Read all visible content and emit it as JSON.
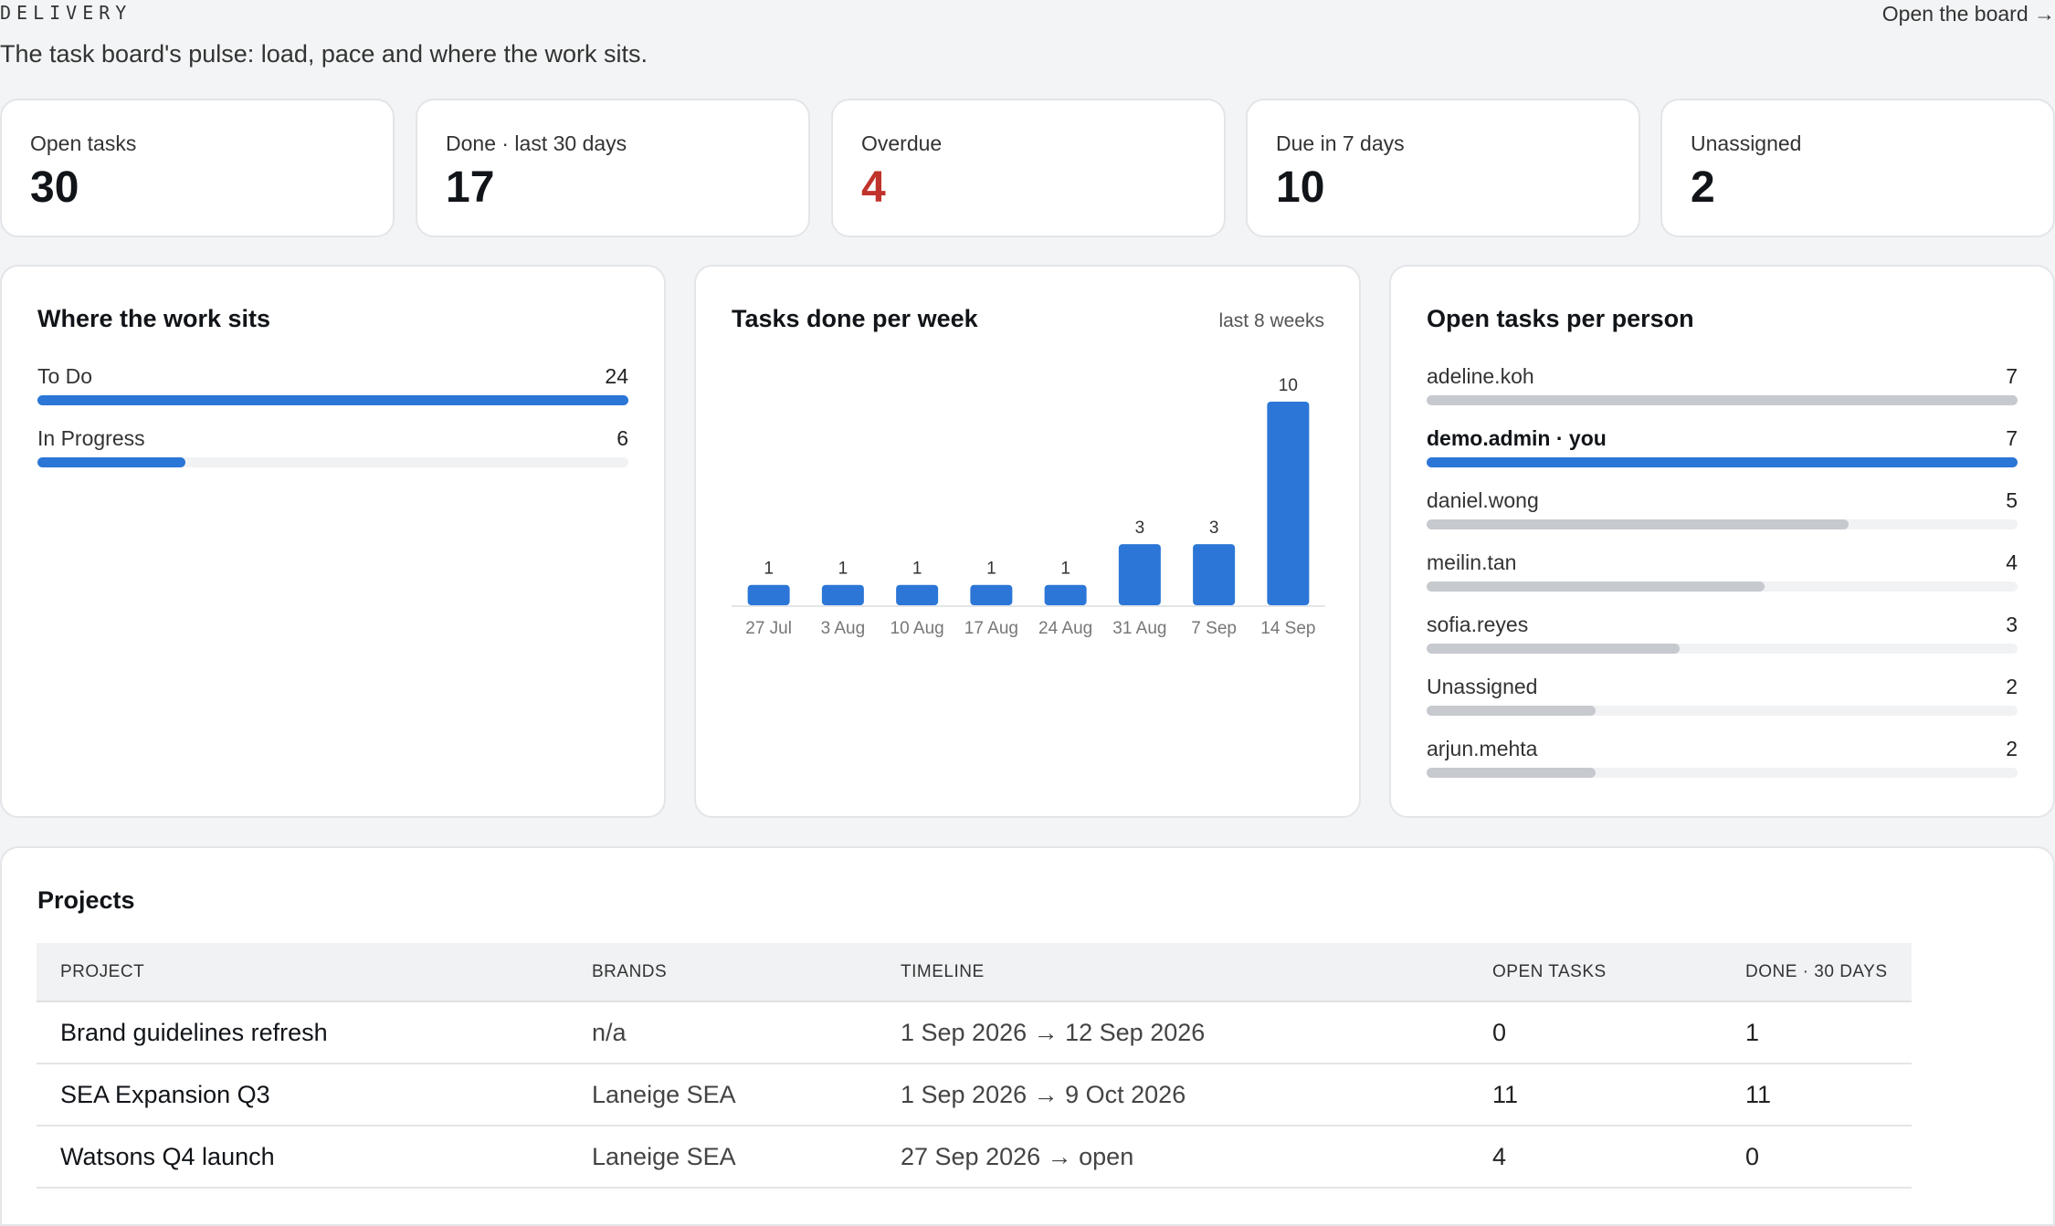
{
  "header": {
    "eyebrow": "DELIVERY",
    "subtitle": "The task board's pulse: load, pace and where the work sits.",
    "open_board_link": "Open the board →"
  },
  "stats": [
    {
      "label": "Open tasks",
      "value": "30"
    },
    {
      "label": "Done · last 30 days",
      "value": "17"
    },
    {
      "label": "Overdue",
      "value": "4"
    },
    {
      "label": "Due in 7 days",
      "value": "10"
    },
    {
      "label": "Unassigned",
      "value": "2"
    }
  ],
  "work_sits": {
    "title": "Where the work sits",
    "rows": [
      {
        "label": "To Do",
        "value": 24
      },
      {
        "label": "In Progress",
        "value": 6
      }
    ]
  },
  "done_per_week": {
    "title": "Tasks done per week",
    "note": "last 8 weeks"
  },
  "chart_data": {
    "type": "bar",
    "title": "Tasks done per week",
    "subtitle": "last 8 weeks",
    "categories": [
      "27 Jul",
      "3 Aug",
      "10 Aug",
      "17 Aug",
      "24 Aug",
      "31 Aug",
      "7 Sep",
      "14 Sep"
    ],
    "values": [
      1,
      1,
      1,
      1,
      1,
      3,
      3,
      10
    ],
    "xlabel": "",
    "ylabel": "",
    "ylim": [
      0,
      10
    ],
    "grid": false,
    "color": "#2b76d6"
  },
  "per_person": {
    "title": "Open tasks per person",
    "rows": [
      {
        "label": "adeline.koh",
        "value": 7,
        "highlight": false
      },
      {
        "label": "demo.admin · you",
        "value": 7,
        "highlight": true
      },
      {
        "label": "daniel.wong",
        "value": 5,
        "highlight": false
      },
      {
        "label": "meilin.tan",
        "value": 4,
        "highlight": false
      },
      {
        "label": "sofia.reyes",
        "value": 3,
        "highlight": false
      },
      {
        "label": "Unassigned",
        "value": 2,
        "highlight": false
      },
      {
        "label": "arjun.mehta",
        "value": 2,
        "highlight": false
      }
    ]
  },
  "projects": {
    "title": "Projects",
    "columns": [
      "PROJECT",
      "BRANDS",
      "TIMELINE",
      "OPEN TASKS",
      "DONE · 30 DAYS"
    ],
    "rows": [
      {
        "project": "Brand guidelines refresh",
        "brands": "n/a",
        "timeline": "1 Sep 2026 → 12 Sep 2026",
        "open": "0",
        "done": "1"
      },
      {
        "project": "SEA Expansion Q3",
        "brands": "Laneige SEA",
        "timeline": "1 Sep 2026 → 9 Oct 2026",
        "open": "11",
        "done": "11"
      },
      {
        "project": "Watsons Q4 launch",
        "brands": "Laneige SEA",
        "timeline": "27 Sep 2026 → open",
        "open": "4",
        "done": "0"
      }
    ]
  },
  "colors": {
    "accent": "#2b76d6",
    "danger": "#c0332b",
    "muted_bar": "#c6c9ce",
    "track": "#f1f2f4"
  }
}
